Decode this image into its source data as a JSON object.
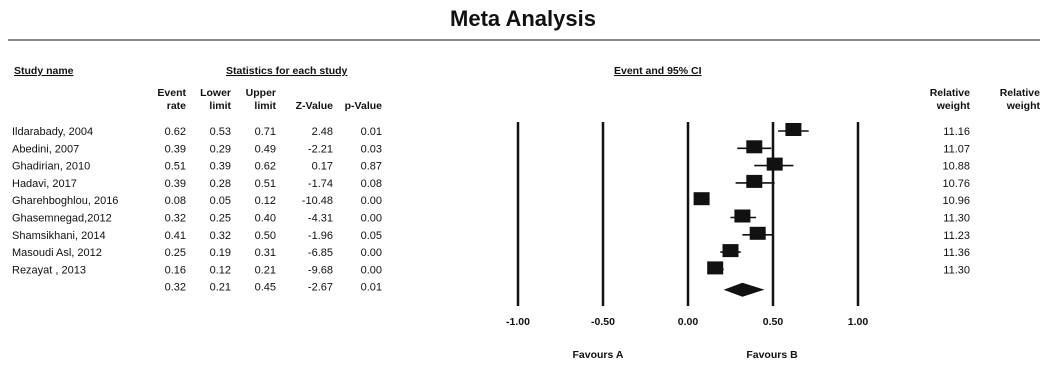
{
  "title": "Meta Analysis",
  "headers": {
    "study_name": "Study name",
    "stats_group": "Statistics for each study",
    "plot_group": "Event and 95% CI",
    "col_event": [
      "Event",
      "rate"
    ],
    "col_lower": [
      "Lower",
      "limit"
    ],
    "col_upper": [
      "Upper",
      "limit"
    ],
    "col_z": "Z-Value",
    "col_p": "p-Value",
    "col_weight1": [
      "Relative",
      "weight"
    ],
    "col_weight2": [
      "Relative",
      "weight"
    ]
  },
  "rows": [
    {
      "study": "Ildarabady, 2004",
      "event_rate": "0.62",
      "lower": "0.53",
      "upper": "0.71",
      "z": "2.48",
      "p": "0.01",
      "weight": "11.16"
    },
    {
      "study": "Abedini, 2007",
      "event_rate": "0.39",
      "lower": "0.29",
      "upper": "0.49",
      "z": "-2.21",
      "p": "0.03",
      "weight": "11.07"
    },
    {
      "study": "Ghadirian, 2010",
      "event_rate": "0.51",
      "lower": "0.39",
      "upper": "0.62",
      "z": "0.17",
      "p": "0.87",
      "weight": "10.88"
    },
    {
      "study": "Hadavi, 2017",
      "event_rate": "0.39",
      "lower": "0.28",
      "upper": "0.51",
      "z": "-1.74",
      "p": "0.08",
      "weight": "10.76"
    },
    {
      "study": "Gharehboghlou, 2016",
      "event_rate": "0.08",
      "lower": "0.05",
      "upper": "0.12",
      "z": "-10.48",
      "p": "0.00",
      "weight": "10.96"
    },
    {
      "study": "Ghasemnegad,2012",
      "event_rate": "0.32",
      "lower": "0.25",
      "upper": "0.40",
      "z": "-4.31",
      "p": "0.00",
      "weight": "11.30"
    },
    {
      "study": "Shamsikhani, 2014",
      "event_rate": "0.41",
      "lower": "0.32",
      "upper": "0.50",
      "z": "-1.96",
      "p": "0.05",
      "weight": "11.23"
    },
    {
      "study": "Masoudi Asl, 2012",
      "event_rate": "0.25",
      "lower": "0.19",
      "upper": "0.31",
      "z": "-6.85",
      "p": "0.00",
      "weight": "11.36"
    },
    {
      "study": "Rezayat , 2013",
      "event_rate": "0.16",
      "lower": "0.12",
      "upper": "0.21",
      "z": "-9.68",
      "p": "0.00",
      "weight": "11.30"
    }
  ],
  "pooled": {
    "event_rate": "0.32",
    "lower": "0.21",
    "upper": "0.45",
    "z": "-2.67",
    "p": "0.01"
  },
  "axis": {
    "ticks": [
      "-1.00",
      "-0.50",
      "0.00",
      "0.50",
      "1.00"
    ],
    "favours_a": "Favours A",
    "favours_b": "Favours B"
  },
  "chart_data": {
    "type": "forest",
    "title": "Meta Analysis",
    "xlim": [
      -1.0,
      1.0
    ],
    "x_ticks": [
      -1.0,
      -0.5,
      0.0,
      0.5,
      1.0
    ],
    "reference_lines": [
      -1.0,
      -0.5,
      0.0,
      0.5,
      1.0
    ],
    "studies": [
      {
        "name": "Ildarabady, 2004",
        "estimate": 0.62,
        "lower": 0.53,
        "upper": 0.71,
        "weight": 11.16
      },
      {
        "name": "Abedini, 2007",
        "estimate": 0.39,
        "lower": 0.29,
        "upper": 0.49,
        "weight": 11.07
      },
      {
        "name": "Ghadirian, 2010",
        "estimate": 0.51,
        "lower": 0.39,
        "upper": 0.62,
        "weight": 10.88
      },
      {
        "name": "Hadavi, 2017",
        "estimate": 0.39,
        "lower": 0.28,
        "upper": 0.51,
        "weight": 10.76
      },
      {
        "name": "Gharehboghlou, 2016",
        "estimate": 0.08,
        "lower": 0.05,
        "upper": 0.12,
        "weight": 10.96
      },
      {
        "name": "Ghasemnegad,2012",
        "estimate": 0.32,
        "lower": 0.25,
        "upper": 0.4,
        "weight": 11.3
      },
      {
        "name": "Shamsikhani, 2014",
        "estimate": 0.41,
        "lower": 0.32,
        "upper": 0.5,
        "weight": 11.23
      },
      {
        "name": "Masoudi Asl, 2012",
        "estimate": 0.25,
        "lower": 0.19,
        "upper": 0.31,
        "weight": 11.36
      },
      {
        "name": "Rezayat , 2013",
        "estimate": 0.16,
        "lower": 0.12,
        "upper": 0.21,
        "weight": 11.3
      }
    ],
    "pooled": {
      "estimate": 0.32,
      "lower": 0.21,
      "upper": 0.45
    }
  },
  "colors": {
    "ink": "#111111",
    "background": "#ffffff"
  }
}
